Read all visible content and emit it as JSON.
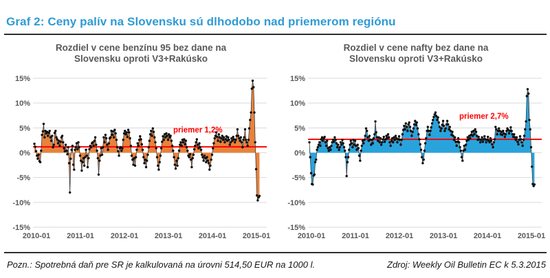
{
  "page": {
    "title": "Graf 2: Ceny palív na Slovensku sú dlhodobo nad priemerom regiónu",
    "title_color": "#2e9bd6",
    "footnote": "Pozn.: Spotrebná daň pre SR je kalkulovaná na úrovni 514,50 EUR na 1000 l.",
    "source": "Zdroj: Weekly Oil Bulletin EC k 5.3.2015"
  },
  "chart_data": [
    {
      "type": "area",
      "title": "Rozdiel v cene benzínu 95 bez dane na Slovensku oproti V3+Rakúsko",
      "title_lines": [
        "Rozdiel v cene benzínu 95 bez dane na",
        "Slovensku oproti V3+Rakúsko"
      ],
      "series_name": "benzín 95 rozdiel ceny bez dane SK vs V3+Rakúsko (%)",
      "x_start": "2010-01",
      "x_freq": "weekly",
      "x_tick_labels": [
        "2010-01",
        "2011-01",
        "2012-01",
        "2013-01",
        "2014-01",
        "2015-01"
      ],
      "y_ticks": [
        15,
        10,
        5,
        0,
        -5,
        -10,
        -15
      ],
      "y_tick_labels": [
        "15%",
        "10%",
        "5%",
        "0%",
        "-5%",
        "-10%",
        "-15%"
      ],
      "ylim": [
        -15,
        15
      ],
      "grid": true,
      "fill_color": "#e8823c",
      "line_color": "#3d3d3d",
      "marker_color": "#0d0d0d",
      "average_line": {
        "value": 1.2,
        "label": "priemer 1,2%",
        "color": "#ff0000",
        "label_x": 252,
        "label_y": 138
      },
      "values": [
        1.8,
        1.2,
        0.3,
        -0.6,
        -1.2,
        -0.4,
        -1.7,
        -1.9,
        0.4,
        3.6,
        4.3,
        5.8,
        3.1,
        4.4,
        3.9,
        4.2,
        3.4,
        4.0,
        4.4,
        3.1,
        2.4,
        3.4,
        1.1,
        1.6,
        4.0,
        4.4,
        3.1,
        2.7,
        1.9,
        2.4,
        1.4,
        2.2,
        3.1,
        3.4,
        2.1,
        0.9,
        0.3,
        1.6,
        0.4,
        -0.3,
        1.1,
        -2.1,
        -8.0,
        -1.2,
        0.6,
        1.4,
        -2.4,
        -3.4,
        0.6,
        1.1,
        1.9,
        0.7,
        2.1,
        1.1,
        -0.6,
        -1.6,
        -3.6,
        -1.9,
        -1.1,
        -2.6,
        -0.9,
        0.6,
        -0.6,
        -2.9,
        -1.1,
        0.7,
        1.4,
        1.1,
        1.9,
        2.1,
        1.4,
        2.4,
        3.1,
        1.6,
        0.4,
        -1.1,
        -4.4,
        -1.6,
        -0.6,
        0.9,
        -0.4,
        1.1,
        3.1,
        2.1,
        3.6,
        2.9,
        1.6,
        0.6,
        1.9,
        2.9,
        3.1,
        4.4,
        3.6,
        4.3,
        3.1,
        4.6,
        3.9,
        2.6,
        1.1,
        0.3,
        -0.6,
        0.9,
        1.1,
        0.4,
        0.9,
        2.6,
        3.9,
        4.4,
        3.7,
        4.1,
        3.2,
        4.6,
        4.1,
        2.9,
        1.4,
        -0.6,
        -1.4,
        -2.4,
        -1.1,
        -2.6,
        -0.9,
        0.6,
        1.9,
        1.4,
        2.6,
        3.3,
        2.7,
        1.7,
        0.6,
        -0.9,
        -2.1,
        -1.4,
        -2.9,
        -1.6,
        -0.4,
        1.1,
        2.4,
        3.7,
        4.4,
        3.4,
        4.9,
        4.2,
        3.1,
        2.1,
        0.9,
        -0.9,
        -2.6,
        -3.4,
        -1.9,
        -0.6,
        0.9,
        2.2,
        3.3,
        2.6,
        3.7,
        3.1,
        3.9,
        3.4,
        2.6,
        3.7,
        3.1,
        3.4,
        2.4,
        1.4,
        0.4,
        -0.9,
        -2.4,
        -3.2,
        -1.6,
        -2.6,
        -1.1,
        0.4,
        1.6,
        2.1,
        1.4,
        2.6,
        2.1,
        2.7,
        1.7,
        2.4,
        1.1,
        0.4,
        -0.6,
        -0.9,
        -0.3,
        -1.4,
        -2.9,
        -1.1,
        -0.4,
        0.7,
        1.4,
        2.1,
        2.7,
        1.6,
        0.9,
        1.9,
        1.1,
        0.6,
        -0.4,
        -0.9,
        -1.6,
        -0.6,
        -1.1,
        -1.9,
        -0.9,
        -1.6,
        -2.1,
        -3.4,
        -2.6,
        -1.4,
        -0.4,
        0.9,
        1.9,
        2.9,
        3.4,
        4.1,
        3.2,
        2.4,
        3.7,
        3.1,
        2.2,
        2.9,
        3.4,
        2.6,
        3.1,
        2.1,
        2.7,
        3.3,
        2.4,
        3.1,
        2.6,
        1.6,
        2.1,
        2.9,
        2.4,
        3.2,
        2.7,
        2.1,
        2.6,
        3.4,
        4.7,
        3.4,
        2.9,
        2.4,
        3.1,
        2.1,
        1.1,
        2.6,
        3.1,
        4.7,
        2.6,
        2.1,
        1.4,
        2.6,
        4.9,
        6.6,
        8.1,
        12.9,
        14.5,
        13.2,
        8.1,
        2.1,
        -3.3,
        -8.6,
        -9.6,
        -9.0,
        -8.7
      ]
    },
    {
      "type": "area",
      "title": "Rozdiel v cene nafty bez dane na Slovensku oproti V3+Rakúsko",
      "title_lines": [
        "Rozdiel v cene nafty bez dane na",
        "Slovensku oproti V3+Rakúsko"
      ],
      "series_name": "nafta rozdiel ceny bez dane SK vs V3+Rakúsko (%)",
      "x_start": "2010-01",
      "x_freq": "weekly",
      "x_tick_labels": [
        "2010-01",
        "2011-01",
        "2012-01",
        "2013-01",
        "2014-01",
        "2015-01"
      ],
      "y_ticks": [
        15,
        10,
        5,
        0,
        -5,
        -10,
        -15
      ],
      "y_tick_labels": [
        "15%",
        "10%",
        "5%",
        "0%",
        "-5%",
        "-10%",
        "-15%"
      ],
      "ylim": [
        -15,
        15
      ],
      "grid": true,
      "fill_color": "#29a3dc",
      "line_color": "#3d3d3d",
      "marker_color": "#0d0d0d",
      "average_line": {
        "value": 2.7,
        "label": "priemer 2,7%",
        "color": "#ff0000",
        "label_x": 268,
        "label_y": 118
      },
      "values": [
        2.1,
        -0.9,
        -4.1,
        -6.3,
        -6.4,
        -4.6,
        -4.4,
        -1.9,
        -1.4,
        0.6,
        1.1,
        1.6,
        2.1,
        1.4,
        2.7,
        3.1,
        2.4,
        2.9,
        3.2,
        2.1,
        1.4,
        2.4,
        0.9,
        0.4,
        1.1,
        0.6,
        1.4,
        2.1,
        2.6,
        2.2,
        3.1,
        2.6,
        1.9,
        1.1,
        1.6,
        0.6,
        1.1,
        2.1,
        1.6,
        2.6,
        1.9,
        1.1,
        0.4,
        -0.9,
        -4.7,
        -1.9,
        -0.9,
        0.6,
        1.6,
        2.4,
        1.9,
        1.1,
        2.6,
        1.6,
        2.4,
        1.4,
        0.6,
        1.6,
        0.9,
        -0.6,
        -1.6,
        0.4,
        1.4,
        2.4,
        1.9,
        2.6,
        3.4,
        4.9,
        4.4,
        3.1,
        2.4,
        3.4,
        2.6,
        1.6,
        2.6,
        1.9,
        2.9,
        3.7,
        6.3,
        4.1,
        3.1,
        2.4,
        3.1,
        2.1,
        2.9,
        1.6,
        2.1,
        2.7,
        3.2,
        2.2,
        2.7,
        3.4,
        2.9,
        3.7,
        3.1,
        2.1,
        1.4,
        2.4,
        2.9,
        2.1,
        3.1,
        2.6,
        3.4,
        2.9,
        2.1,
        2.7,
        3.3,
        2.6,
        1.6,
        2.6,
        3.7,
        4.6,
        5.4,
        4.7,
        5.9,
        5.2,
        4.4,
        5.7,
        6.1,
        5.2,
        4.4,
        3.4,
        4.2,
        4.9,
        5.7,
        6.4,
        5.6,
        6.1,
        4.9,
        3.7,
        2.7,
        1.7,
        0.6,
        -0.9,
        -2.1,
        -1.4,
        0.4,
        1.9,
        2.9,
        4.4,
        5.2,
        4.4,
        3.6,
        4.4,
        5.1,
        5.9,
        6.6,
        7.2,
        7.7,
        8.1,
        7.4,
        6.6,
        7.1,
        6.1,
        5.2,
        4.4,
        4.9,
        5.6,
        6.4,
        5.4,
        4.4,
        4.9,
        5.7,
        6.4,
        5.7,
        4.7,
        5.2,
        4.4,
        3.6,
        4.2,
        3.4,
        2.6,
        3.1,
        2.2,
        1.4,
        2.2,
        2.9,
        2.1,
        1.1,
        0.4,
        -0.9,
        -1.6,
        0.4,
        1.4,
        0.6,
        1.6,
        2.4,
        3.1,
        2.6,
        3.4,
        2.9,
        3.6,
        4.2,
        3.4,
        4.4,
        3.7,
        4.7,
        4.2,
        3.4,
        2.6,
        3.2,
        2.7,
        2.1,
        2.6,
        3.1,
        2.2,
        2.7,
        3.3,
        2.7,
        2.1,
        2.6,
        3.2,
        2.4,
        2.1,
        2.9,
        2.4,
        1.7,
        1.1,
        2.1,
        2.7,
        5.2,
        4.7,
        3.7,
        4.4,
        4.9,
        4.4,
        3.7,
        4.2,
        3.6,
        4.4,
        3.9,
        3.2,
        3.7,
        4.4,
        4.9,
        4.6,
        3.9,
        4.4,
        5.1,
        4.4,
        3.7,
        3.2,
        3.7,
        3.1,
        2.6,
        3.1,
        2.2,
        1.7,
        2.6,
        3.3,
        2.7,
        2.1,
        1.4,
        2.6,
        3.4,
        4.7,
        6.3,
        11.4,
        12.8,
        11.9,
        6.6,
        4.7,
        1.1,
        -2.8,
        -6.3,
        -6.7,
        -6.4
      ]
    }
  ]
}
